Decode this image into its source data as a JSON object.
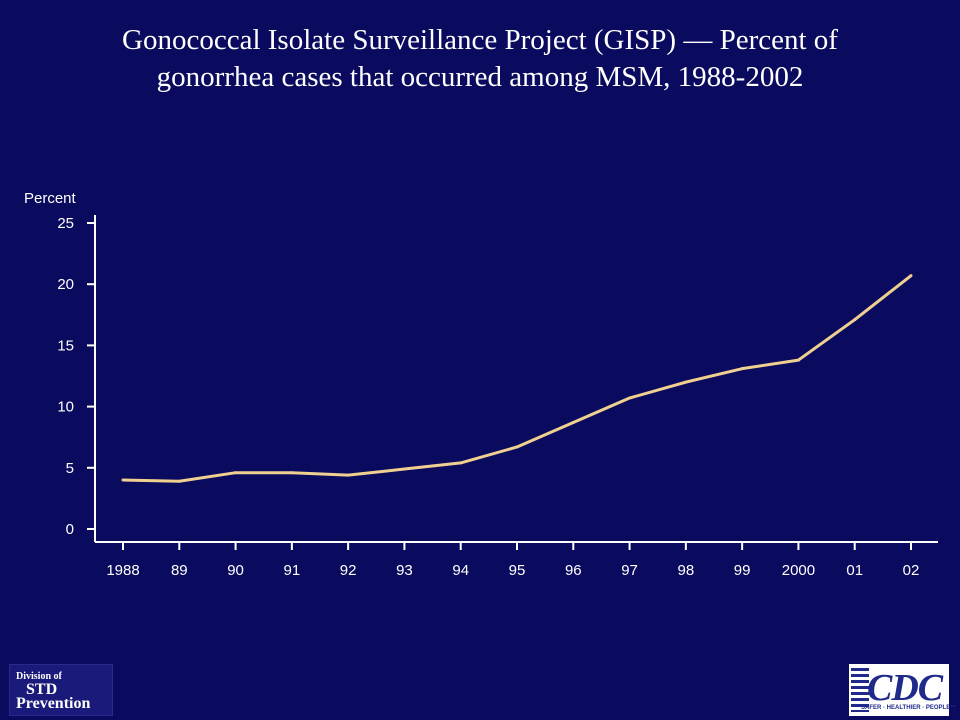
{
  "title": {
    "line1": "Gonococcal Isolate Surveillance Project (GISP)  — Percent of",
    "line2": "gonorrhea cases that occurred among MSM, 1988-2002"
  },
  "logos": {
    "std": {
      "line1": "Division of",
      "line2": "STD",
      "line3": "Prevention"
    },
    "cdc": {
      "text": "CDC",
      "tagline": "SAFER · HEALTHIER · PEOPLE™"
    }
  },
  "colors": {
    "background": "#0a0a5e",
    "axis": "#ffffff",
    "line": "#f0d090"
  },
  "chart_data": {
    "type": "line",
    "title": "Gonococcal Isolate Surveillance Project (GISP) — Percent of gonorrhea cases that occurred among MSM, 1988-2002",
    "ylabel": "Percent",
    "xlabel": "",
    "ylim": [
      0,
      25
    ],
    "yticks": [
      "0",
      "5",
      "10",
      "15",
      "20",
      "25"
    ],
    "categories": [
      "1988",
      "89",
      "90",
      "91",
      "92",
      "93",
      "94",
      "95",
      "96",
      "97",
      "98",
      "99",
      "2000",
      "01",
      "02"
    ],
    "series": [
      {
        "values": [
          4.0,
          3.9,
          4.6,
          4.6,
          4.4,
          4.9,
          5.4,
          6.7,
          8.7,
          10.7,
          12.0,
          13.1,
          13.8,
          17.1,
          20.7
        ]
      }
    ],
    "grid": false,
    "legend": "none"
  }
}
